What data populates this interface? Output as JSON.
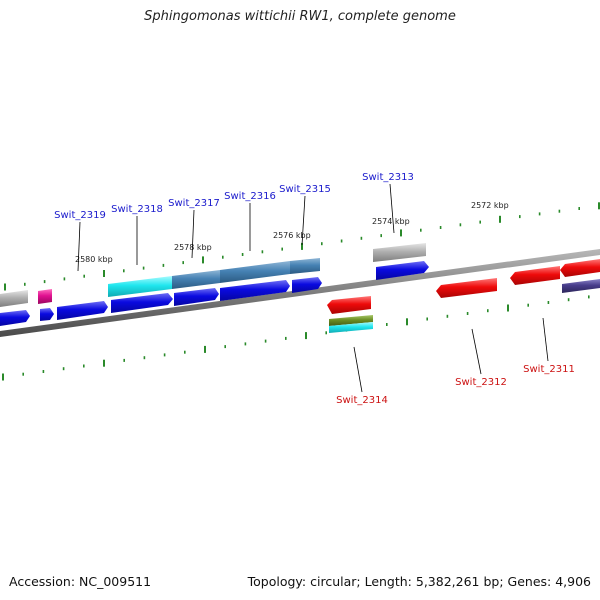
{
  "title": "Sphingomonas wittichii RW1, complete genome",
  "accession_text": "Accession: NC_009511",
  "summary_text": "Topology: circular; Length: 5,382,261 bp; Genes: 4,906",
  "ruler_labels": [
    "2580 kbp",
    "2578 kbp",
    "2576 kbp",
    "2574 kbp",
    "2572 kbp"
  ],
  "gene_labels": {
    "forward": [
      "Swit_2319",
      "Swit_2318",
      "Swit_2317",
      "Swit_2316",
      "Swit_2315",
      "Swit_2313"
    ],
    "reverse": [
      "Swit_2314",
      "Swit_2312",
      "Swit_2311"
    ]
  },
  "colors": {
    "forward_label": "#1a1acc",
    "reverse_label": "#cc1111",
    "forward_gene": "#0a0ae0",
    "reverse_gene": "#ee0a0a",
    "steelblue_feature": "#4682b4",
    "cyan_feature": "#1fe6ee",
    "grey_feature": "#b0b0b0",
    "magenta_feature": "#e01090",
    "olive_feature": "#6b8e23",
    "slate_feature": "#483d8b",
    "tick": "#2a8a2a",
    "backbone": "#7d7d7d"
  }
}
